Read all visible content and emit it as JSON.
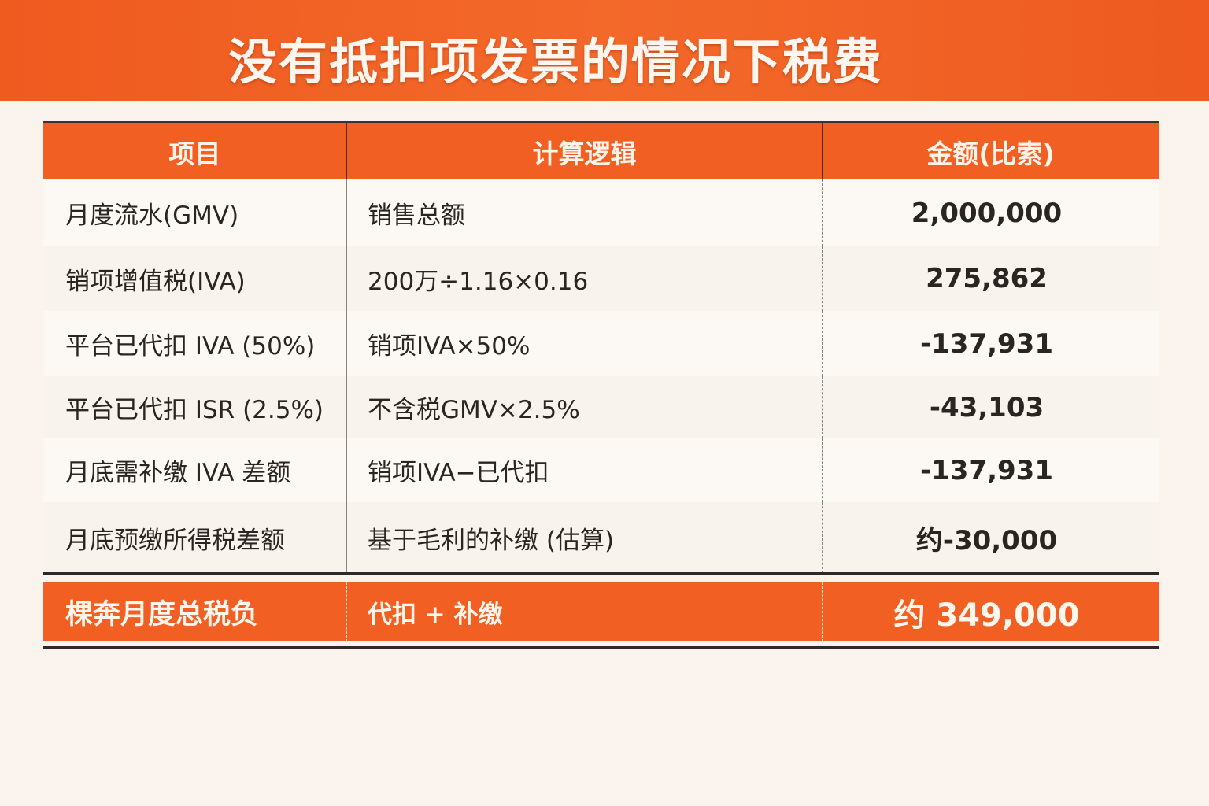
{
  "title": "没有抵扣项发票的情况下税费",
  "columns": [
    "项目",
    "计算逻辑",
    "金额(比索)"
  ],
  "rows": [
    {
      "item": "月度流水(GMV)",
      "logic": "销售总额",
      "amount": "2,000,000"
    },
    {
      "item": "销项增值税(IVA)",
      "logic": "200万÷1.16×0.16",
      "amount": "275,862"
    },
    {
      "item": "平台已代扣 IVA (50%)",
      "logic": "销项IVA×50%",
      "amount": "-137,931"
    },
    {
      "item": "平台已代扣 ISR (2.5%)",
      "logic": "不含税GMV×2.5%",
      "amount": "-43,103"
    },
    {
      "item": "月底需补缴 IVA 差额",
      "logic": "销项IVA−已代扣",
      "amount": "-137,931"
    },
    {
      "item": "月底预缴所得税差额",
      "logic": "基于毛利的补缴 (估算)",
      "amount": "约-30,000"
    }
  ],
  "total": {
    "item": "棵奔月度总税负",
    "logic": "代扣 + 补缴",
    "amount": "约 349,000"
  },
  "colors": {
    "accent": "#f15f22",
    "background": "#fbf4ee"
  }
}
